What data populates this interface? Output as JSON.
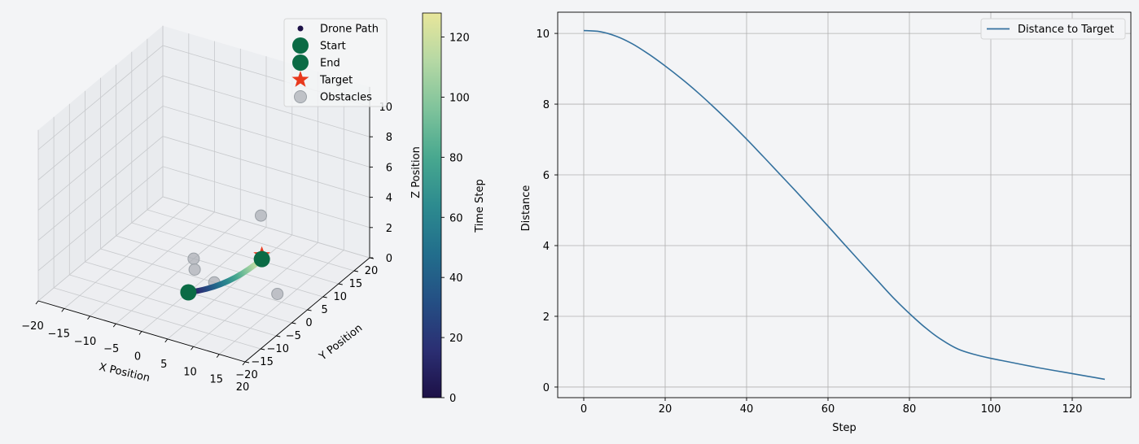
{
  "colors": {
    "background": "#f3f4f6",
    "pane_face": "#e9ebee",
    "grid": "#c7c9cc",
    "start_end": "#0b6b45",
    "target": "#e8391d",
    "obstacle": "#a9adb3",
    "distance_line": "#34719e",
    "colormap": [
      "#1d1147",
      "#2b2f73",
      "#244f84",
      "#226e8c",
      "#2d8b8f",
      "#48a88f",
      "#7fc39b",
      "#b5d8a4",
      "#e8e69b"
    ]
  },
  "chart_data": [
    {
      "type": "scatter",
      "projection": "3d",
      "xlabel": "X Position",
      "ylabel": "Y Position",
      "zlabel": "Z Position",
      "xlim": [
        -20,
        20
      ],
      "ylim": [
        -20,
        20
      ],
      "zlim": [
        0,
        10
      ],
      "xticks": [
        "−20",
        "−15",
        "−10",
        "−5",
        "0",
        "5",
        "10",
        "15",
        "20"
      ],
      "yticks": [
        "−20",
        "−15",
        "−10",
        "−5",
        "0",
        "5",
        "10",
        "15",
        "20"
      ],
      "zticks": [
        "0",
        "2",
        "4",
        "6",
        "8",
        "10"
      ],
      "grid": true,
      "legend": {
        "placement": "top-right",
        "entries": [
          {
            "label": "Drone Path",
            "marker": "dot"
          },
          {
            "label": "Start",
            "marker": "circle"
          },
          {
            "label": "End",
            "marker": "circle"
          },
          {
            "label": "Target",
            "marker": "star"
          },
          {
            "label": "Obstacles",
            "marker": "circle"
          }
        ]
      },
      "drone_path": {
        "start": [
          0,
          -5,
          0
        ],
        "end": [
          10,
          2,
          2
        ],
        "steps": 128,
        "colored_by": "time step"
      },
      "start": [
        0,
        -5,
        0
      ],
      "end": [
        10,
        2,
        2
      ],
      "target": [
        10,
        2,
        2
      ],
      "obstacles": [
        [
          -5,
          5,
          0
        ],
        [
          -3,
          2,
          0
        ],
        [
          2,
          0,
          0
        ],
        [
          13,
          2,
          0
        ],
        [
          5,
          10,
          3
        ]
      ],
      "colorbar": {
        "label": "Time Step",
        "min": 0,
        "max": 128,
        "ticks": [
          "0",
          "20",
          "40",
          "60",
          "80",
          "100",
          "120"
        ]
      }
    },
    {
      "type": "line",
      "xlabel": "Step",
      "ylabel": "Distance",
      "xlim": [
        -6.4,
        134.4
      ],
      "ylim": [
        -0.3,
        10.6
      ],
      "xticks": [
        "0",
        "20",
        "40",
        "60",
        "80",
        "100",
        "120"
      ],
      "yticks": [
        "0",
        "2",
        "4",
        "6",
        "8",
        "10"
      ],
      "grid": true,
      "legend": {
        "placement": "top-right"
      },
      "series": [
        {
          "name": "Distance to Target",
          "x": [
            0,
            4,
            8,
            12,
            16,
            20,
            24,
            28,
            32,
            36,
            40,
            44,
            48,
            52,
            56,
            60,
            64,
            68,
            72,
            76,
            80,
            84,
            88,
            92,
            96,
            100,
            104,
            108,
            112,
            116,
            120,
            124,
            128
          ],
          "y": [
            10.08,
            10.05,
            9.92,
            9.7,
            9.41,
            9.08,
            8.72,
            8.33,
            7.91,
            7.47,
            7.01,
            6.53,
            6.04,
            5.55,
            5.05,
            4.55,
            4.04,
            3.53,
            3.03,
            2.53,
            2.08,
            1.67,
            1.33,
            1.07,
            0.92,
            0.81,
            0.72,
            0.63,
            0.54,
            0.46,
            0.38,
            0.3,
            0.22
          ]
        }
      ]
    }
  ]
}
